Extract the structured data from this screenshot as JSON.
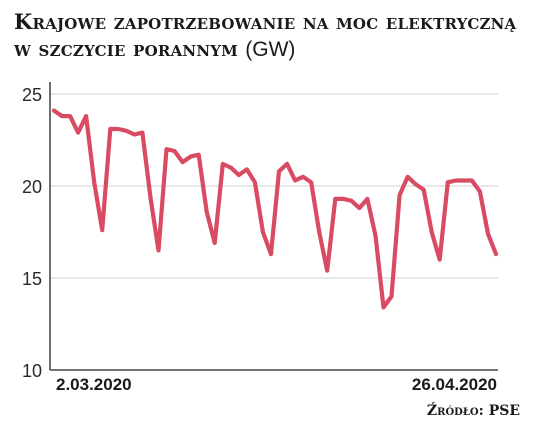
{
  "title": "Krajowe zapotrzebowanie na moc elektryczną w szczycie porannym",
  "unit": "(GW)",
  "source": "Źródło: PSE",
  "colors": {
    "line": "#d94a63",
    "grid": "#d0d0d0",
    "axis": "#222222"
  },
  "chart_data": {
    "type": "line",
    "title": "Krajowe zapotrzebowanie na moc elektryczną w szczycie porannym (GW)",
    "ylim": [
      10,
      25
    ],
    "yticks": [
      "25",
      "20",
      "15",
      "10"
    ],
    "xtick_labels": {
      "first": "2.03.2020",
      "last": "26.04.2020"
    },
    "grid": true,
    "x": [
      "2020-03-02",
      "2020-03-03",
      "2020-03-04",
      "2020-03-05",
      "2020-03-06",
      "2020-03-07",
      "2020-03-08",
      "2020-03-09",
      "2020-03-10",
      "2020-03-11",
      "2020-03-12",
      "2020-03-13",
      "2020-03-14",
      "2020-03-15",
      "2020-03-16",
      "2020-03-17",
      "2020-03-18",
      "2020-03-19",
      "2020-03-20",
      "2020-03-21",
      "2020-03-22",
      "2020-03-23",
      "2020-03-24",
      "2020-03-25",
      "2020-03-26",
      "2020-03-27",
      "2020-03-28",
      "2020-03-29",
      "2020-03-30",
      "2020-03-31",
      "2020-04-01",
      "2020-04-02",
      "2020-04-03",
      "2020-04-04",
      "2020-04-05",
      "2020-04-06",
      "2020-04-07",
      "2020-04-08",
      "2020-04-09",
      "2020-04-10",
      "2020-04-11",
      "2020-04-12",
      "2020-04-13",
      "2020-04-14",
      "2020-04-15",
      "2020-04-16",
      "2020-04-17",
      "2020-04-18",
      "2020-04-19",
      "2020-04-20",
      "2020-04-21",
      "2020-04-22",
      "2020-04-23",
      "2020-04-24",
      "2020-04-25",
      "2020-04-26"
    ],
    "values": [
      24.1,
      23.8,
      23.8,
      22.9,
      23.8,
      20.2,
      17.6,
      23.1,
      23.1,
      23.0,
      22.8,
      22.9,
      19.4,
      16.5,
      22.0,
      21.9,
      21.3,
      21.6,
      21.7,
      18.6,
      16.9,
      21.2,
      21.0,
      20.6,
      20.9,
      20.2,
      17.5,
      16.3,
      20.8,
      21.2,
      20.3,
      20.5,
      20.2,
      17.5,
      15.4,
      19.3,
      19.3,
      19.2,
      18.8,
      19.3,
      17.3,
      13.4,
      14.0,
      19.5,
      20.5,
      20.1,
      19.8,
      17.5,
      16.0,
      20.2,
      20.3,
      20.3,
      20.3,
      19.7,
      17.4,
      16.3
    ]
  }
}
